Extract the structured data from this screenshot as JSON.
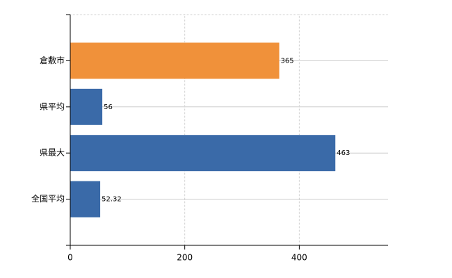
{
  "chart_data": {
    "type": "barh",
    "categories": [
      "倉敷市",
      "県平均",
      "県最大",
      "全国平均"
    ],
    "values": [
      365,
      56,
      463,
      52.32
    ],
    "colors": [
      "#f0913a",
      "#3a6aa8",
      "#3a6aa8",
      "#3a6aa8"
    ],
    "xlim": [
      0,
      555
    ],
    "xticks": [
      0,
      200,
      400
    ],
    "grid": true
  }
}
